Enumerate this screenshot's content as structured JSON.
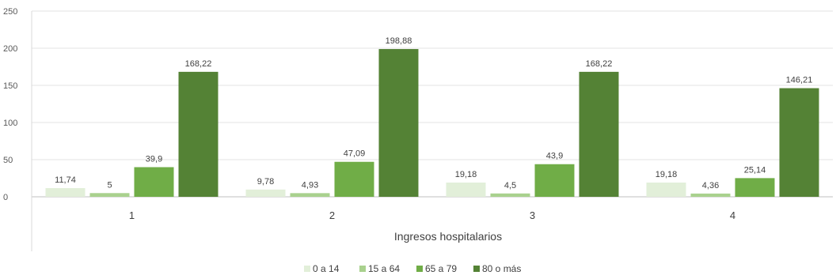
{
  "chart_data": {
    "type": "bar",
    "categories": [
      "1",
      "2",
      "3",
      "4"
    ],
    "series": [
      {
        "name": "0 a 14",
        "values": [
          11.74,
          9.78,
          19.18,
          19.18
        ],
        "labels": [
          "11,74",
          "9,78",
          "19,18",
          "19,18"
        ],
        "color": "#e2efd9"
      },
      {
        "name": "15 a 64",
        "values": [
          5,
          4.93,
          4.5,
          4.36
        ],
        "labels": [
          "5",
          "4,93",
          "4,5",
          "4,36"
        ],
        "color": "#a9d18e"
      },
      {
        "name": "65 a 79",
        "values": [
          39.9,
          47.09,
          43.9,
          25.14
        ],
        "labels": [
          "39,9",
          "47,09",
          "43,9",
          "25,14"
        ],
        "color": "#70ad47"
      },
      {
        "name": "80 o más",
        "values": [
          168.22,
          198.88,
          168.22,
          146.21
        ],
        "labels": [
          "168,22",
          "198,88",
          "168,22",
          "146,21"
        ],
        "color": "#548235"
      }
    ],
    "xlabel": "Ingresos hospitalarios",
    "ylabel": "",
    "ylim": [
      0,
      250
    ],
    "yticks": [
      0,
      50,
      100,
      150,
      200,
      250
    ],
    "grid": true,
    "legend": "bottom"
  }
}
